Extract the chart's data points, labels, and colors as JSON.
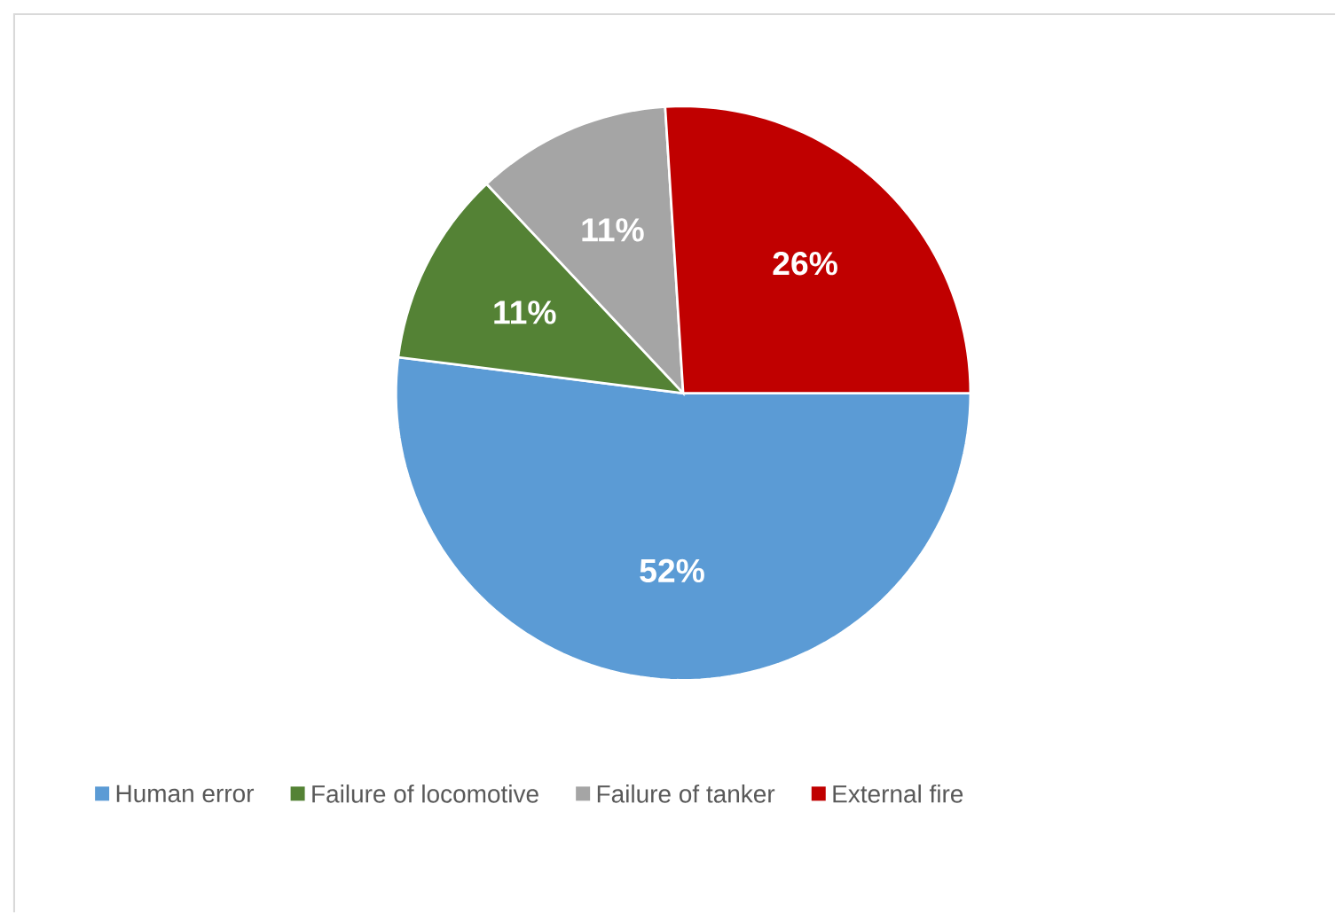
{
  "chart_data": {
    "type": "pie",
    "categories": [
      "Human error",
      "Failure of locomotive",
      "Failure of tanker",
      "External fire"
    ],
    "values": [
      52,
      11,
      11,
      26
    ],
    "value_labels": [
      "52%",
      "11%",
      "11%",
      "26%"
    ],
    "colors": [
      "#5b9bd5",
      "#548235",
      "#a5a5a5",
      "#c00000"
    ],
    "legend": "bottom"
  }
}
